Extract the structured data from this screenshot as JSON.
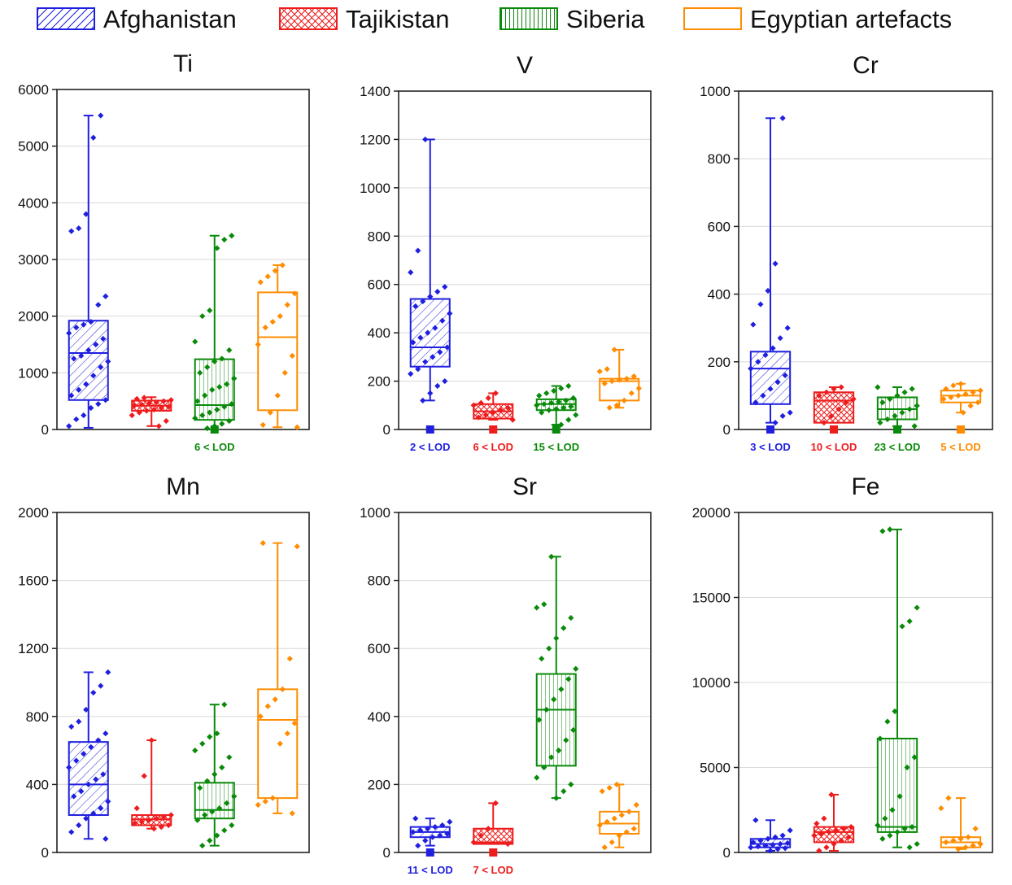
{
  "legend": [
    {
      "name": "Afghanistan",
      "color": "#1f1fe0",
      "pattern": "diagonal-hatch"
    },
    {
      "name": "Tajikistan",
      "color": "#ef1c1c",
      "pattern": "crosshatch"
    },
    {
      "name": "Siberia",
      "color": "#0a8a0a",
      "pattern": "vertical-lines"
    },
    {
      "name": "Egyptian artefacts",
      "color": "#ff8c00",
      "pattern": "none"
    }
  ],
  "chart_data": [
    {
      "type": "box",
      "title": "Ti",
      "ylim": [
        0,
        6000
      ],
      "yticks": [
        0,
        1000,
        2000,
        3000,
        4000,
        5000,
        6000
      ],
      "grid": true,
      "series": [
        {
          "name": "Afghanistan",
          "min": 30,
          "q1": 520,
          "median": 1350,
          "q3": 1920,
          "max": 5540,
          "points": [
            60,
            180,
            250,
            380,
            450,
            520,
            600,
            700,
            800,
            950,
            1100,
            1200,
            1250,
            1300,
            1400,
            1500,
            1600,
            1700,
            1800,
            1850,
            1900,
            2200,
            2350,
            3500,
            3550,
            3800,
            5150,
            5540
          ]
        },
        {
          "name": "Tajikistan",
          "min": 60,
          "q1": 330,
          "median": 420,
          "q3": 510,
          "max": 570,
          "points": [
            60,
            150,
            250,
            300,
            330,
            350,
            380,
            400,
            420,
            440,
            460,
            480,
            500,
            520,
            540,
            560
          ]
        },
        {
          "name": "Siberia",
          "min": 0,
          "q1": 170,
          "median": 430,
          "q3": 1240,
          "max": 3420,
          "points": [
            20,
            60,
            100,
            150,
            200,
            250,
            300,
            350,
            400,
            450,
            500,
            600,
            700,
            750,
            800,
            900,
            1000,
            1100,
            1200,
            1250,
            1400,
            1550,
            2000,
            2100,
            3200,
            3350,
            3420
          ],
          "lod": {
            "marker": 0,
            "label": "6 < LOD"
          }
        },
        {
          "name": "Egyptian artefacts",
          "min": 40,
          "q1": 340,
          "median": 1630,
          "q3": 2420,
          "max": 2900,
          "points": [
            40,
            80,
            300,
            600,
            1000,
            1300,
            1500,
            1800,
            1900,
            2000,
            2200,
            2400,
            2600,
            2700,
            2800,
            2900
          ]
        }
      ]
    },
    {
      "type": "box",
      "title": "V",
      "ylim": [
        0,
        1400
      ],
      "yticks": [
        0,
        200,
        400,
        600,
        800,
        1000,
        1200,
        1400
      ],
      "grid": true,
      "series": [
        {
          "name": "Afghanistan",
          "min": 120,
          "q1": 260,
          "median": 340,
          "q3": 540,
          "max": 1200,
          "points": [
            120,
            150,
            180,
            200,
            230,
            250,
            280,
            300,
            320,
            340,
            360,
            380,
            400,
            420,
            450,
            480,
            510,
            530,
            550,
            570,
            590,
            650,
            740,
            1200
          ],
          "lod": {
            "marker": 0,
            "label": "2 < LOD"
          }
        },
        {
          "name": "Tajikistan",
          "min": 40,
          "q1": 45,
          "median": 75,
          "q3": 105,
          "max": 150,
          "points": [
            40,
            50,
            60,
            70,
            80,
            90,
            100,
            110,
            130,
            150
          ],
          "lod": {
            "marker": 0,
            "label": "6 < LOD"
          }
        },
        {
          "name": "Siberia",
          "min": 20,
          "q1": 80,
          "median": 105,
          "q3": 125,
          "max": 180,
          "points": [
            20,
            40,
            60,
            70,
            80,
            85,
            90,
            95,
            100,
            105,
            110,
            115,
            120,
            130,
            140,
            150,
            160,
            170,
            180
          ],
          "lod": {
            "marker": 0,
            "label": "15 < LOD"
          }
        },
        {
          "name": "Egyptian artefacts",
          "min": 90,
          "q1": 120,
          "median": 200,
          "q3": 210,
          "max": 330,
          "points": [
            90,
            100,
            120,
            150,
            170,
            190,
            200,
            205,
            210,
            220,
            240,
            250,
            330
          ]
        }
      ]
    },
    {
      "type": "box",
      "title": "Cr",
      "ylim": [
        0,
        1000
      ],
      "yticks": [
        0,
        200,
        400,
        600,
        800,
        1000
      ],
      "grid": true,
      "series": [
        {
          "name": "Afghanistan",
          "min": 20,
          "q1": 75,
          "median": 180,
          "q3": 230,
          "max": 920,
          "points": [
            20,
            40,
            50,
            80,
            100,
            120,
            140,
            160,
            180,
            200,
            220,
            240,
            270,
            300,
            310,
            370,
            410,
            490,
            920
          ],
          "lod": {
            "marker": 0,
            "label": "3 < LOD"
          }
        },
        {
          "name": "Tajikistan",
          "min": 20,
          "q1": 20,
          "median": 85,
          "q3": 110,
          "max": 125,
          "points": [
            20,
            40,
            60,
            80,
            90,
            100,
            110,
            120,
            125
          ],
          "lod": {
            "marker": 0,
            "label": "10 < LOD"
          }
        },
        {
          "name": "Siberia",
          "min": 10,
          "q1": 30,
          "median": 60,
          "q3": 95,
          "max": 125,
          "points": [
            10,
            20,
            30,
            40,
            50,
            60,
            70,
            80,
            90,
            100,
            110,
            120,
            125
          ],
          "lod": {
            "marker": 0,
            "label": "23 < LOD"
          }
        },
        {
          "name": "Egyptian artefacts",
          "min": 50,
          "q1": 80,
          "median": 100,
          "q3": 115,
          "max": 135,
          "points": [
            50,
            70,
            80,
            90,
            95,
            100,
            105,
            110,
            115,
            120,
            130,
            135
          ],
          "lod": {
            "marker": 0,
            "label": "5 < LOD"
          }
        }
      ]
    },
    {
      "type": "box",
      "title": "Mn",
      "ylim": [
        0,
        2000
      ],
      "yticks": [
        0,
        400,
        800,
        1200,
        1600,
        2000
      ],
      "grid": true,
      "series": [
        {
          "name": "Afghanistan",
          "min": 80,
          "q1": 220,
          "median": 400,
          "q3": 650,
          "max": 1060,
          "points": [
            80,
            120,
            160,
            200,
            230,
            260,
            300,
            330,
            360,
            400,
            430,
            460,
            500,
            540,
            580,
            620,
            660,
            700,
            740,
            770,
            840,
            940,
            980,
            1060
          ]
        },
        {
          "name": "Tajikistan",
          "min": 140,
          "q1": 160,
          "median": 195,
          "q3": 220,
          "max": 660,
          "points": [
            140,
            150,
            160,
            170,
            180,
            190,
            200,
            210,
            220,
            260,
            450,
            660
          ]
        },
        {
          "name": "Siberia",
          "min": 40,
          "q1": 200,
          "median": 250,
          "q3": 410,
          "max": 870,
          "points": [
            40,
            70,
            100,
            130,
            160,
            190,
            220,
            240,
            260,
            290,
            330,
            380,
            420,
            460,
            500,
            560,
            600,
            640,
            680,
            700,
            870
          ]
        },
        {
          "name": "Egyptian artefacts",
          "min": 230,
          "q1": 320,
          "median": 780,
          "q3": 960,
          "max": 1820,
          "points": [
            230,
            280,
            300,
            320,
            640,
            700,
            760,
            800,
            860,
            900,
            960,
            1140,
            1800,
            1820
          ]
        }
      ]
    },
    {
      "type": "box",
      "title": "Sr",
      "ylim": [
        0,
        1000
      ],
      "yticks": [
        0,
        200,
        400,
        600,
        800,
        1000
      ],
      "grid": true,
      "series": [
        {
          "name": "Afghanistan",
          "min": 20,
          "q1": 45,
          "median": 60,
          "q3": 75,
          "max": 100,
          "points": [
            20,
            35,
            45,
            50,
            55,
            60,
            65,
            70,
            75,
            80,
            90,
            100
          ],
          "lod": {
            "marker": 0,
            "label": "11 < LOD"
          }
        },
        {
          "name": "Tajikistan",
          "min": 25,
          "q1": 25,
          "median": 30,
          "q3": 70,
          "max": 145,
          "points": [
            25,
            30,
            50,
            70,
            145
          ],
          "lod": {
            "marker": 0,
            "label": "7 < LOD"
          }
        },
        {
          "name": "Siberia",
          "min": 160,
          "q1": 255,
          "median": 420,
          "q3": 525,
          "max": 870,
          "points": [
            160,
            180,
            200,
            220,
            250,
            280,
            300,
            330,
            360,
            390,
            420,
            450,
            480,
            510,
            540,
            570,
            600,
            630,
            660,
            690,
            720,
            730,
            870
          ]
        },
        {
          "name": "Egyptian artefacts",
          "min": 15,
          "q1": 55,
          "median": 85,
          "q3": 120,
          "max": 200,
          "points": [
            15,
            30,
            50,
            60,
            70,
            80,
            90,
            100,
            110,
            120,
            140,
            180,
            190,
            200
          ]
        }
      ]
    },
    {
      "type": "box",
      "title": "Fe",
      "ylim": [
        0,
        20000
      ],
      "yticks": [
        0,
        5000,
        10000,
        15000,
        20000
      ],
      "grid": true,
      "series": [
        {
          "name": "Afghanistan",
          "min": 100,
          "q1": 300,
          "median": 500,
          "q3": 800,
          "max": 1900,
          "points": [
            100,
            200,
            250,
            300,
            350,
            400,
            450,
            500,
            550,
            600,
            700,
            800,
            900,
            1000,
            1300,
            1900
          ]
        },
        {
          "name": "Tajikistan",
          "min": 100,
          "q1": 600,
          "median": 1200,
          "q3": 1500,
          "max": 3400,
          "points": [
            100,
            300,
            500,
            700,
            900,
            1000,
            1100,
            1200,
            1300,
            1400,
            1500,
            1700,
            2000,
            3400
          ]
        },
        {
          "name": "Siberia",
          "min": 300,
          "q1": 1200,
          "median": 1500,
          "q3": 6700,
          "max": 19000,
          "points": [
            300,
            500,
            800,
            1000,
            1200,
            1400,
            1500,
            1600,
            2000,
            2500,
            3300,
            5000,
            5600,
            6700,
            7700,
            8300,
            13300,
            13600,
            14400,
            18900,
            19000
          ]
        },
        {
          "name": "Egyptian artefacts",
          "min": 200,
          "q1": 300,
          "median": 600,
          "q3": 900,
          "max": 3200,
          "points": [
            200,
            300,
            400,
            500,
            600,
            700,
            800,
            900,
            1400,
            2600,
            3200
          ]
        }
      ]
    }
  ]
}
